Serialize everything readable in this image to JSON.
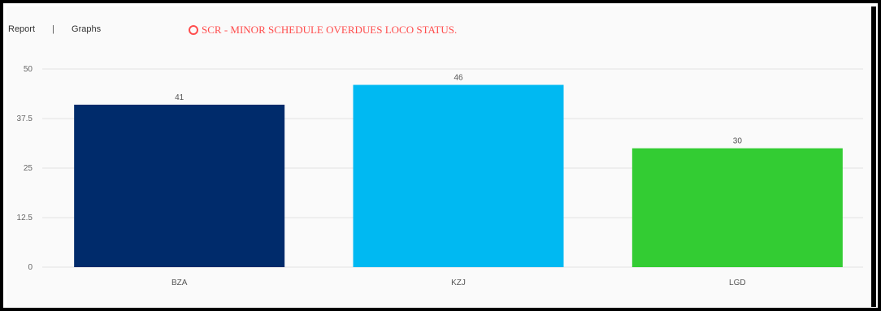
{
  "tabs": {
    "report": "Report",
    "separator": "|",
    "graphs": "Graphs"
  },
  "header": {
    "title": "SCR - MINOR SCHEDULE OVERDUES LOCO STATUS.",
    "title_color": "#ff4d4d",
    "title_icon": "ring-icon"
  },
  "chart_data": {
    "type": "bar",
    "categories": [
      "BZA",
      "KZJ",
      "LGD"
    ],
    "values": [
      41,
      46,
      30
    ],
    "colors": [
      "#002b6b",
      "#00b9f2",
      "#33cc33"
    ],
    "title": "",
    "xlabel": "",
    "ylabel": "",
    "ylim": [
      0,
      50
    ],
    "yticks": [
      "0",
      "12.5",
      "25",
      "37.5",
      "50"
    ],
    "grid": true,
    "legend": "none"
  }
}
